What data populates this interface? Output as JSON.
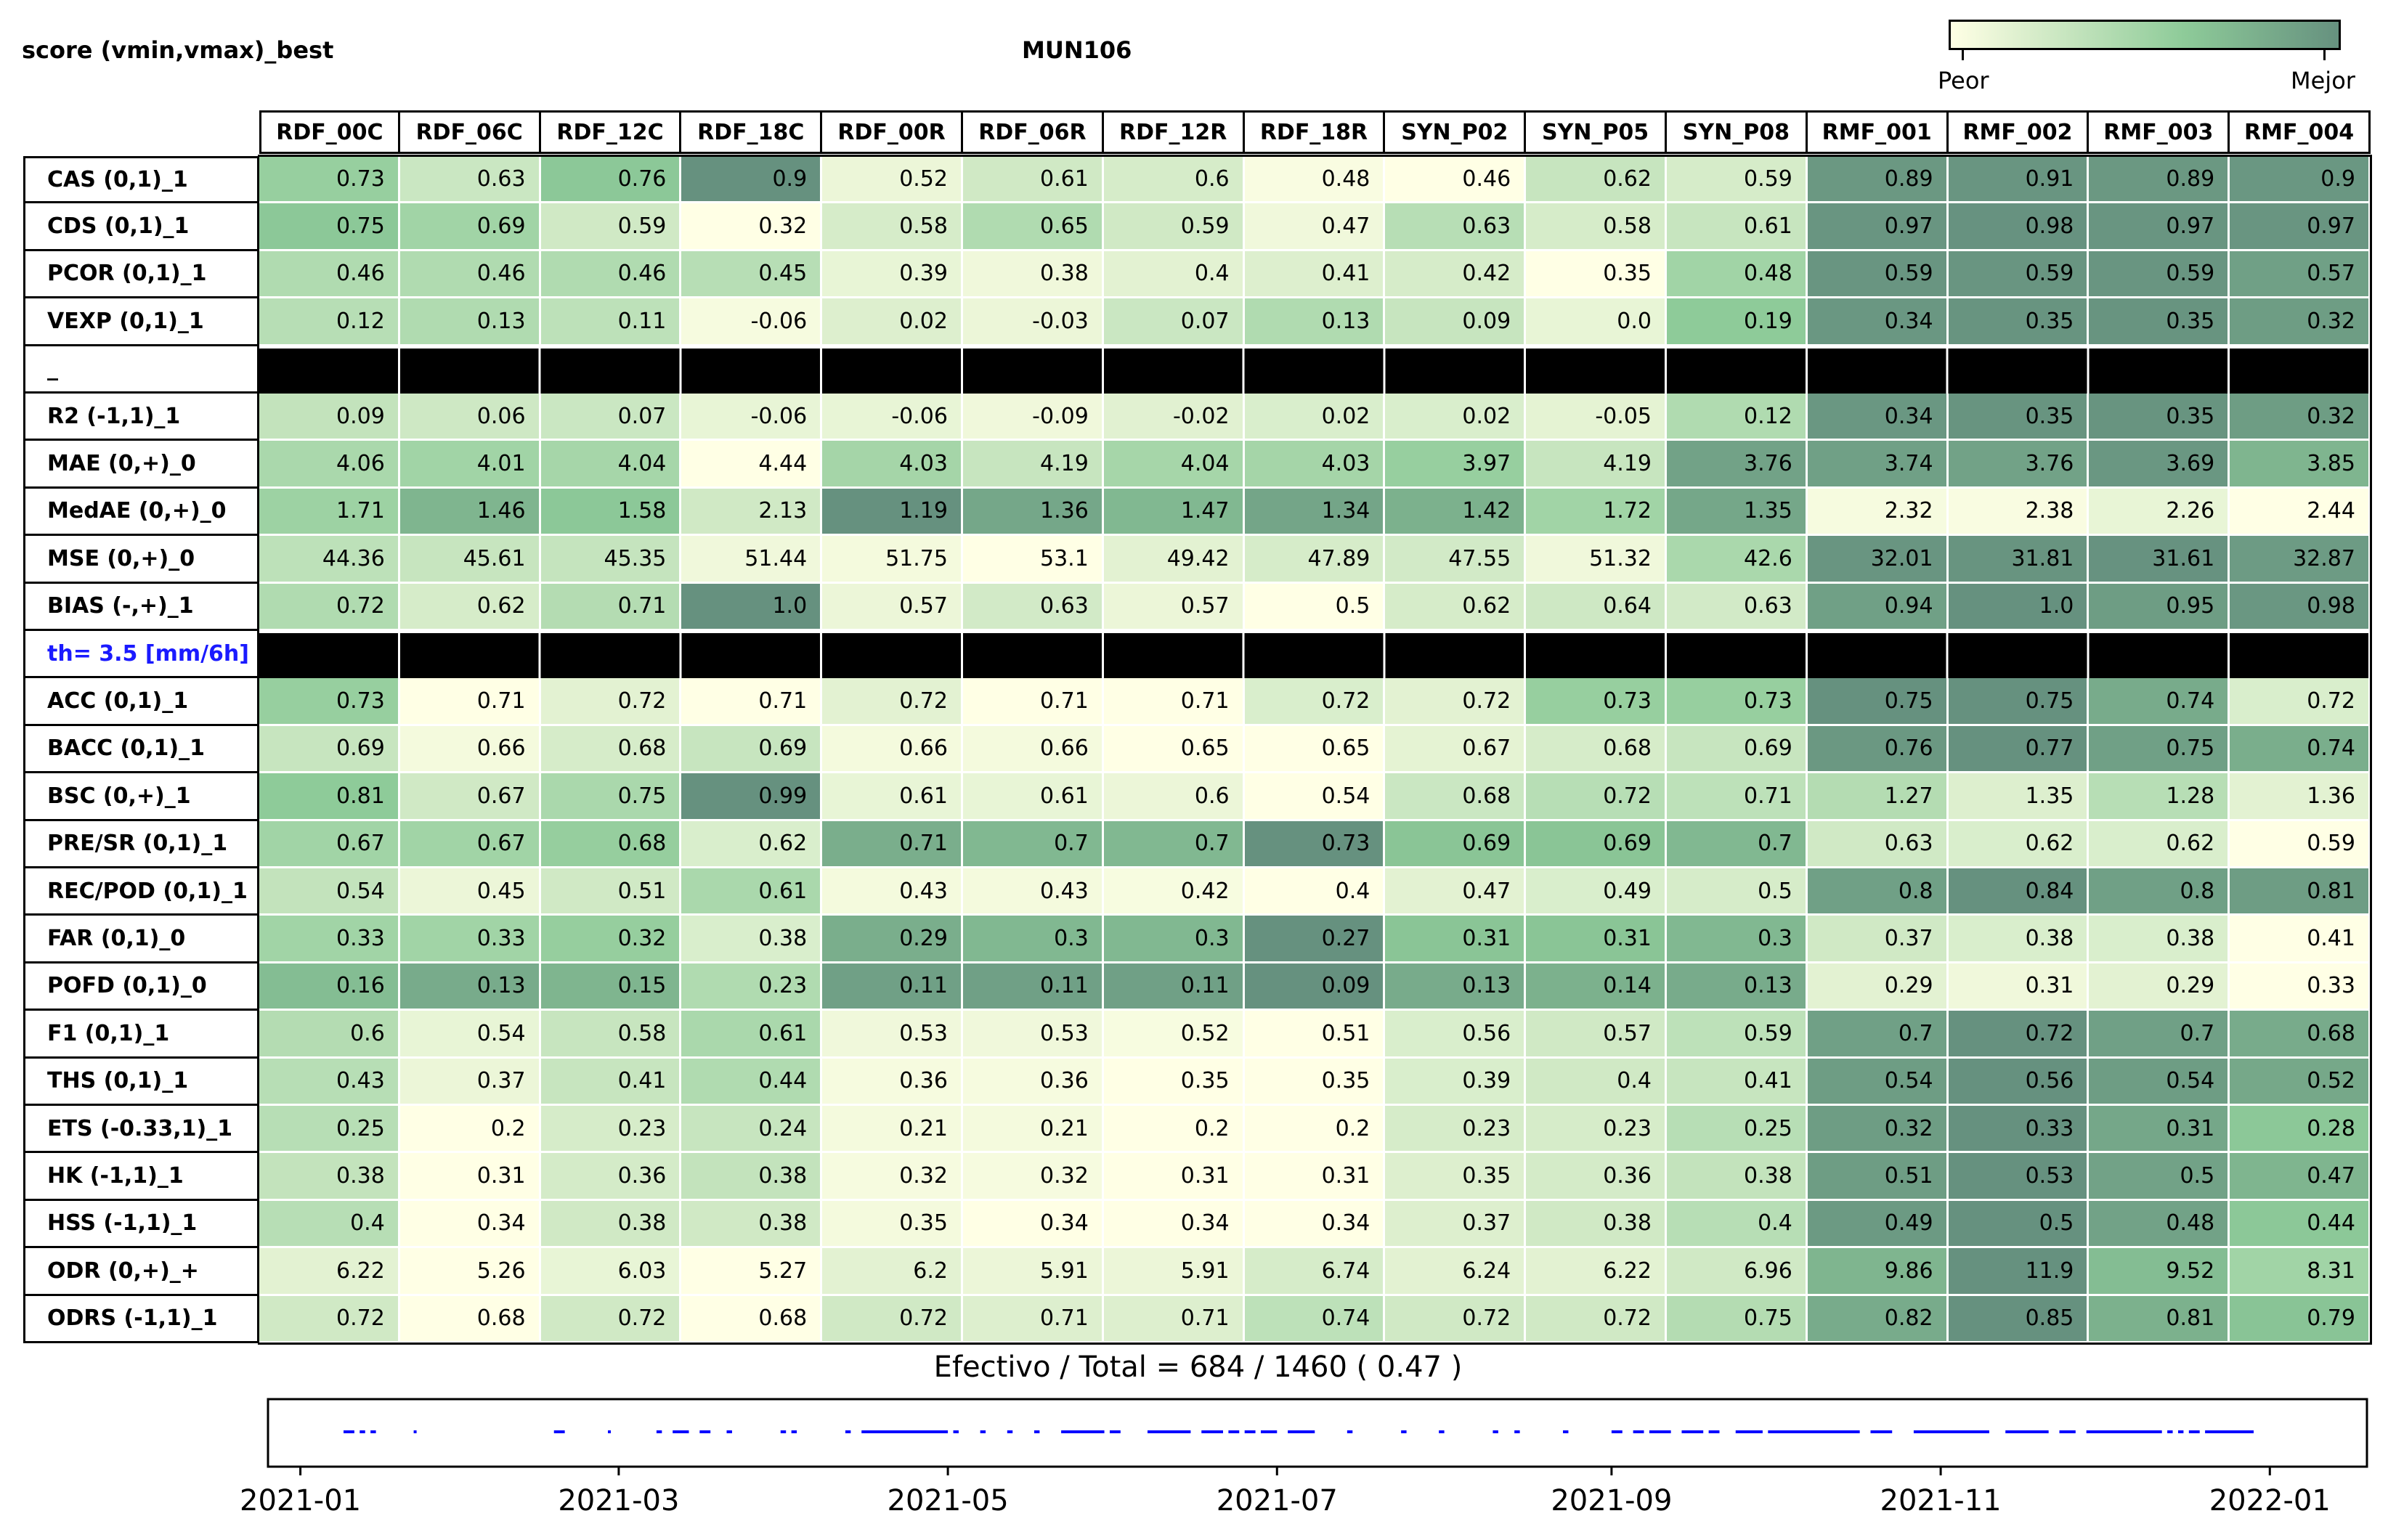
{
  "header": {
    "left": "score (vmin,vmax)_best",
    "center": "MUN106"
  },
  "legend": {
    "low_label": "Peor",
    "high_label": "Mejor",
    "color_low": "#ffffe5",
    "color_mid": "#8ecb99",
    "color_high": "#66917f"
  },
  "summary": {
    "label": "Efectivo / Total  =  684 / 1460 ( 0.47 )"
  },
  "chart_data": [
    {
      "type": "heatmap",
      "title": "MUN106",
      "columns": [
        "RDF_00C",
        "RDF_06C",
        "RDF_12C",
        "RDF_18C",
        "RDF_00R",
        "RDF_06R",
        "RDF_12R",
        "RDF_18R",
        "SYN_P02",
        "SYN_P05",
        "SYN_P08",
        "RMF_001",
        "RMF_002",
        "RMF_003",
        "RMF_004"
      ],
      "rows": [
        {
          "label": "CAS (0,1)_1",
          "values": [
            0.73,
            0.63,
            0.76,
            0.9,
            0.52,
            0.61,
            0.6,
            0.48,
            0.46,
            0.62,
            0.59,
            0.89,
            0.91,
            0.89,
            0.9
          ],
          "shade": [
            0.55,
            0.28,
            0.62,
            1.0,
            0.1,
            0.25,
            0.22,
            0.03,
            0.0,
            0.3,
            0.22,
            0.95,
            0.97,
            0.95,
            0.96
          ]
        },
        {
          "label": "CDS (0,1)_1",
          "values": [
            0.75,
            0.69,
            0.59,
            0.32,
            0.58,
            0.65,
            0.59,
            0.47,
            0.63,
            0.58,
            0.61,
            0.97,
            0.98,
            0.97,
            0.97
          ],
          "shade": [
            0.62,
            0.5,
            0.25,
            0.0,
            0.22,
            0.42,
            0.25,
            0.08,
            0.38,
            0.22,
            0.3,
            0.97,
            0.99,
            0.97,
            0.97
          ]
        },
        {
          "label": "PCOR (0,1)_1",
          "values": [
            0.46,
            0.46,
            0.46,
            0.45,
            0.39,
            0.38,
            0.4,
            0.41,
            0.42,
            0.35,
            0.48,
            0.59,
            0.59,
            0.59,
            0.57
          ],
          "shade": [
            0.42,
            0.42,
            0.42,
            0.38,
            0.12,
            0.08,
            0.15,
            0.18,
            0.22,
            0.0,
            0.5,
            0.97,
            0.97,
            0.97,
            0.9
          ]
        },
        {
          "label": "VEXP (0,1)_1",
          "values": [
            0.12,
            0.13,
            0.11,
            -0.06,
            0.02,
            -0.03,
            0.07,
            0.13,
            0.09,
            0.0,
            0.19,
            0.34,
            0.35,
            0.35,
            0.32
          ],
          "shade": [
            0.38,
            0.42,
            0.35,
            0.05,
            0.18,
            0.1,
            0.28,
            0.42,
            0.3,
            0.12,
            0.6,
            0.96,
            0.98,
            0.98,
            0.92
          ]
        },
        {
          "label": "_",
          "separator": true
        },
        {
          "label": "R2 (-1,1)_1",
          "values": [
            0.09,
            0.06,
            0.07,
            -0.06,
            -0.06,
            -0.09,
            -0.02,
            0.02,
            0.02,
            -0.05,
            0.12,
            0.34,
            0.35,
            0.35,
            0.32
          ],
          "shade": [
            0.32,
            0.26,
            0.28,
            0.12,
            0.12,
            0.08,
            0.16,
            0.2,
            0.2,
            0.14,
            0.42,
            0.96,
            0.98,
            0.98,
            0.92
          ]
        },
        {
          "label": "MAE (0,+)_0",
          "values": [
            4.06,
            4.01,
            4.04,
            4.44,
            4.03,
            4.19,
            4.04,
            4.03,
            3.97,
            4.19,
            3.76,
            3.74,
            3.76,
            3.69,
            3.85
          ],
          "shade": [
            0.45,
            0.5,
            0.47,
            0.0,
            0.48,
            0.3,
            0.47,
            0.48,
            0.55,
            0.3,
            0.88,
            0.9,
            0.88,
            0.96,
            0.75
          ]
        },
        {
          "label": "MedAE (0,+)_0",
          "values": [
            1.71,
            1.46,
            1.58,
            2.13,
            1.19,
            1.36,
            1.47,
            1.34,
            1.42,
            1.72,
            1.35,
            2.32,
            2.38,
            2.26,
            2.44
          ],
          "shade": [
            0.52,
            0.75,
            0.62,
            0.25,
            1.0,
            0.85,
            0.73,
            0.86,
            0.78,
            0.5,
            0.85,
            0.05,
            0.03,
            0.12,
            0.0
          ]
        },
        {
          "label": "MSE (0,+)_0",
          "values": [
            44.36,
            45.61,
            45.35,
            51.44,
            51.75,
            53.1,
            49.42,
            47.89,
            47.55,
            51.32,
            42.6,
            32.01,
            31.81,
            31.61,
            32.87
          ],
          "shade": [
            0.35,
            0.3,
            0.31,
            0.08,
            0.06,
            0.0,
            0.15,
            0.22,
            0.24,
            0.08,
            0.45,
            0.97,
            0.98,
            0.99,
            0.93
          ]
        },
        {
          "label": "BIAS (-,+)_1",
          "values": [
            0.72,
            0.62,
            0.71,
            1.0,
            0.57,
            0.63,
            0.57,
            0.5,
            0.62,
            0.64,
            0.63,
            0.94,
            1.0,
            0.95,
            0.98
          ],
          "shade": [
            0.42,
            0.22,
            0.4,
            1.0,
            0.1,
            0.24,
            0.1,
            0.0,
            0.22,
            0.26,
            0.24,
            0.9,
            1.0,
            0.92,
            0.96
          ]
        },
        {
          "label": "th= 3.5 [mm/6h]",
          "separator": true,
          "blue": true
        },
        {
          "label": "ACC (0,1)_1",
          "values": [
            0.73,
            0.71,
            0.72,
            0.71,
            0.72,
            0.71,
            0.71,
            0.72,
            0.72,
            0.73,
            0.73,
            0.75,
            0.75,
            0.74,
            0.72
          ],
          "shade": [
            0.55,
            0.0,
            0.15,
            0.0,
            0.15,
            0.0,
            0.0,
            0.2,
            0.15,
            0.55,
            0.55,
            1.0,
            1.0,
            0.82,
            0.2
          ]
        },
        {
          "label": "BACC (0,1)_1",
          "values": [
            0.69,
            0.66,
            0.68,
            0.69,
            0.66,
            0.66,
            0.65,
            0.65,
            0.67,
            0.68,
            0.69,
            0.76,
            0.77,
            0.75,
            0.74
          ],
          "shade": [
            0.3,
            0.06,
            0.22,
            0.3,
            0.06,
            0.06,
            0.0,
            0.0,
            0.14,
            0.22,
            0.3,
            0.95,
            1.0,
            0.9,
            0.8
          ]
        },
        {
          "label": "BSC (0,+)_1",
          "values": [
            0.81,
            0.67,
            0.75,
            0.99,
            0.61,
            0.61,
            0.6,
            0.54,
            0.68,
            0.72,
            0.71,
            1.27,
            1.35,
            1.28,
            1.36
          ],
          "shade": [
            0.6,
            0.25,
            0.45,
            1.0,
            0.12,
            0.12,
            0.1,
            0.0,
            0.28,
            0.38,
            0.35,
            0.4,
            0.18,
            0.38,
            0.15
          ]
        },
        {
          "label": "PRE/SR (0,1)_1",
          "values": [
            0.67,
            0.67,
            0.68,
            0.62,
            0.71,
            0.7,
            0.7,
            0.73,
            0.69,
            0.69,
            0.7,
            0.63,
            0.62,
            0.62,
            0.59
          ],
          "shade": [
            0.5,
            0.5,
            0.56,
            0.2,
            0.8,
            0.73,
            0.73,
            1.0,
            0.64,
            0.64,
            0.73,
            0.25,
            0.2,
            0.2,
            0.0
          ]
        },
        {
          "label": "REC/POD (0,1)_1",
          "values": [
            0.54,
            0.45,
            0.51,
            0.61,
            0.43,
            0.43,
            0.42,
            0.4,
            0.47,
            0.49,
            0.5,
            0.8,
            0.84,
            0.8,
            0.81
          ],
          "shade": [
            0.32,
            0.1,
            0.25,
            0.45,
            0.06,
            0.06,
            0.04,
            0.0,
            0.15,
            0.2,
            0.22,
            0.9,
            1.0,
            0.9,
            0.92
          ]
        },
        {
          "label": "FAR (0,1)_0",
          "values": [
            0.33,
            0.33,
            0.32,
            0.38,
            0.29,
            0.3,
            0.3,
            0.27,
            0.31,
            0.31,
            0.3,
            0.37,
            0.38,
            0.38,
            0.41
          ],
          "shade": [
            0.5,
            0.5,
            0.56,
            0.2,
            0.8,
            0.73,
            0.73,
            1.0,
            0.64,
            0.64,
            0.73,
            0.25,
            0.2,
            0.2,
            0.0
          ]
        },
        {
          "label": "POFD (0,1)_0",
          "values": [
            0.16,
            0.13,
            0.15,
            0.23,
            0.11,
            0.11,
            0.11,
            0.09,
            0.13,
            0.14,
            0.13,
            0.29,
            0.31,
            0.29,
            0.33
          ],
          "shade": [
            0.7,
            0.82,
            0.75,
            0.42,
            0.9,
            0.9,
            0.9,
            1.0,
            0.82,
            0.78,
            0.82,
            0.15,
            0.08,
            0.15,
            0.0
          ]
        },
        {
          "label": "F1 (0,1)_1",
          "values": [
            0.6,
            0.54,
            0.58,
            0.61,
            0.53,
            0.53,
            0.52,
            0.51,
            0.56,
            0.57,
            0.59,
            0.7,
            0.72,
            0.7,
            0.68
          ],
          "shade": [
            0.4,
            0.12,
            0.3,
            0.45,
            0.08,
            0.08,
            0.04,
            0.0,
            0.2,
            0.25,
            0.35,
            0.9,
            1.0,
            0.9,
            0.82
          ]
        },
        {
          "label": "THS (0,1)_1",
          "values": [
            0.43,
            0.37,
            0.41,
            0.44,
            0.36,
            0.36,
            0.35,
            0.35,
            0.39,
            0.4,
            0.41,
            0.54,
            0.56,
            0.54,
            0.52
          ],
          "shade": [
            0.38,
            0.1,
            0.3,
            0.42,
            0.05,
            0.05,
            0.0,
            0.0,
            0.2,
            0.25,
            0.3,
            0.92,
            1.0,
            0.92,
            0.84
          ]
        },
        {
          "label": "ETS (-0.33,1)_1",
          "values": [
            0.25,
            0.2,
            0.23,
            0.24,
            0.21,
            0.21,
            0.2,
            0.2,
            0.23,
            0.23,
            0.25,
            0.32,
            0.33,
            0.31,
            0.28
          ],
          "shade": [
            0.38,
            0.0,
            0.22,
            0.3,
            0.06,
            0.06,
            0.0,
            0.0,
            0.22,
            0.22,
            0.38,
            0.92,
            1.0,
            0.85,
            0.62
          ]
        },
        {
          "label": "HK (-1,1)_1",
          "values": [
            0.38,
            0.31,
            0.36,
            0.38,
            0.32,
            0.32,
            0.31,
            0.31,
            0.35,
            0.36,
            0.38,
            0.51,
            0.53,
            0.5,
            0.47
          ],
          "shade": [
            0.32,
            0.0,
            0.23,
            0.32,
            0.05,
            0.05,
            0.0,
            0.0,
            0.18,
            0.23,
            0.32,
            0.92,
            1.0,
            0.88,
            0.75
          ]
        },
        {
          "label": "HSS (-1,1)_1",
          "values": [
            0.4,
            0.34,
            0.38,
            0.38,
            0.35,
            0.34,
            0.34,
            0.34,
            0.37,
            0.38,
            0.4,
            0.49,
            0.5,
            0.48,
            0.44
          ],
          "shade": [
            0.38,
            0.0,
            0.25,
            0.25,
            0.06,
            0.0,
            0.0,
            0.0,
            0.18,
            0.25,
            0.38,
            0.94,
            1.0,
            0.88,
            0.62
          ]
        },
        {
          "label": "ODR (0,+)_+",
          "values": [
            6.22,
            5.26,
            6.03,
            5.27,
            6.2,
            5.91,
            5.91,
            6.74,
            6.24,
            6.22,
            6.96,
            9.86,
            11.9,
            9.52,
            8.31
          ],
          "shade": [
            0.15,
            0.0,
            0.12,
            0.0,
            0.15,
            0.1,
            0.1,
            0.22,
            0.15,
            0.15,
            0.25,
            0.75,
            1.0,
            0.7,
            0.5
          ]
        },
        {
          "label": "ODRS (-1,1)_1",
          "values": [
            0.72,
            0.68,
            0.72,
            0.68,
            0.72,
            0.71,
            0.71,
            0.74,
            0.72,
            0.72,
            0.75,
            0.82,
            0.85,
            0.81,
            0.79
          ],
          "shade": [
            0.25,
            0.0,
            0.25,
            0.0,
            0.25,
            0.18,
            0.18,
            0.35,
            0.25,
            0.25,
            0.4,
            0.82,
            1.0,
            0.78,
            0.65
          ]
        }
      ]
    },
    {
      "type": "timeline",
      "x_range": [
        "2020-12-26",
        "2022-01-19"
      ],
      "x_tick_labels": [
        "2021-01",
        "2021-03",
        "2021-05",
        "2021-07",
        "2021-09",
        "2021-11",
        "2022-01"
      ],
      "x_ticks": [
        "2021-01-01",
        "2021-03-01",
        "2021-05-01",
        "2021-07-01",
        "2021-09-01",
        "2021-11-01",
        "2022-01-01"
      ],
      "series_color": "#0000ff",
      "segments": [
        [
          "2021-01-09",
          "2021-01-11"
        ],
        [
          "2021-01-12",
          "2021-01-13"
        ],
        [
          "2021-01-14",
          "2021-01-15"
        ],
        [
          "2021-01-22",
          "2021-01-22"
        ],
        [
          "2021-02-17",
          "2021-02-19"
        ],
        [
          "2021-02-27",
          "2021-02-27"
        ],
        [
          "2021-03-08",
          "2021-03-09"
        ],
        [
          "2021-03-11",
          "2021-03-14"
        ],
        [
          "2021-03-16",
          "2021-03-18"
        ],
        [
          "2021-03-21",
          "2021-03-22"
        ],
        [
          "2021-03-31",
          "2021-04-01"
        ],
        [
          "2021-04-02",
          "2021-04-03"
        ],
        [
          "2021-04-12",
          "2021-04-13"
        ],
        [
          "2021-04-15",
          "2021-05-01"
        ],
        [
          "2021-05-02",
          "2021-05-03"
        ],
        [
          "2021-05-07",
          "2021-05-08"
        ],
        [
          "2021-05-12",
          "2021-05-13"
        ],
        [
          "2021-05-17",
          "2021-05-18"
        ],
        [
          "2021-05-22",
          "2021-05-30"
        ],
        [
          "2021-05-31",
          "2021-06-02"
        ],
        [
          "2021-06-07",
          "2021-06-15"
        ],
        [
          "2021-06-17",
          "2021-06-21"
        ],
        [
          "2021-06-22",
          "2021-06-24"
        ],
        [
          "2021-06-25",
          "2021-06-27"
        ],
        [
          "2021-06-28",
          "2021-07-01"
        ],
        [
          "2021-07-03",
          "2021-07-08"
        ],
        [
          "2021-07-14",
          "2021-07-15"
        ],
        [
          "2021-07-24",
          "2021-07-25"
        ],
        [
          "2021-07-31",
          "2021-08-01"
        ],
        [
          "2021-08-10",
          "2021-08-11"
        ],
        [
          "2021-08-14",
          "2021-08-15"
        ],
        [
          "2021-08-23",
          "2021-08-24"
        ],
        [
          "2021-09-01",
          "2021-09-03"
        ],
        [
          "2021-09-05",
          "2021-09-07"
        ],
        [
          "2021-09-08",
          "2021-09-12"
        ],
        [
          "2021-09-14",
          "2021-09-18"
        ],
        [
          "2021-09-19",
          "2021-09-21"
        ],
        [
          "2021-09-24",
          "2021-09-29"
        ],
        [
          "2021-09-30",
          "2021-10-17"
        ],
        [
          "2021-10-19",
          "2021-10-23"
        ],
        [
          "2021-10-27",
          "2021-11-10"
        ],
        [
          "2021-11-13",
          "2021-11-21"
        ],
        [
          "2021-11-23",
          "2021-11-26"
        ],
        [
          "2021-11-28",
          "2021-12-12"
        ],
        [
          "2021-12-13",
          "2021-12-14"
        ],
        [
          "2021-12-15",
          "2021-12-16"
        ],
        [
          "2021-12-17",
          "2021-12-19"
        ],
        [
          "2021-12-20",
          "2021-12-29"
        ]
      ]
    }
  ]
}
